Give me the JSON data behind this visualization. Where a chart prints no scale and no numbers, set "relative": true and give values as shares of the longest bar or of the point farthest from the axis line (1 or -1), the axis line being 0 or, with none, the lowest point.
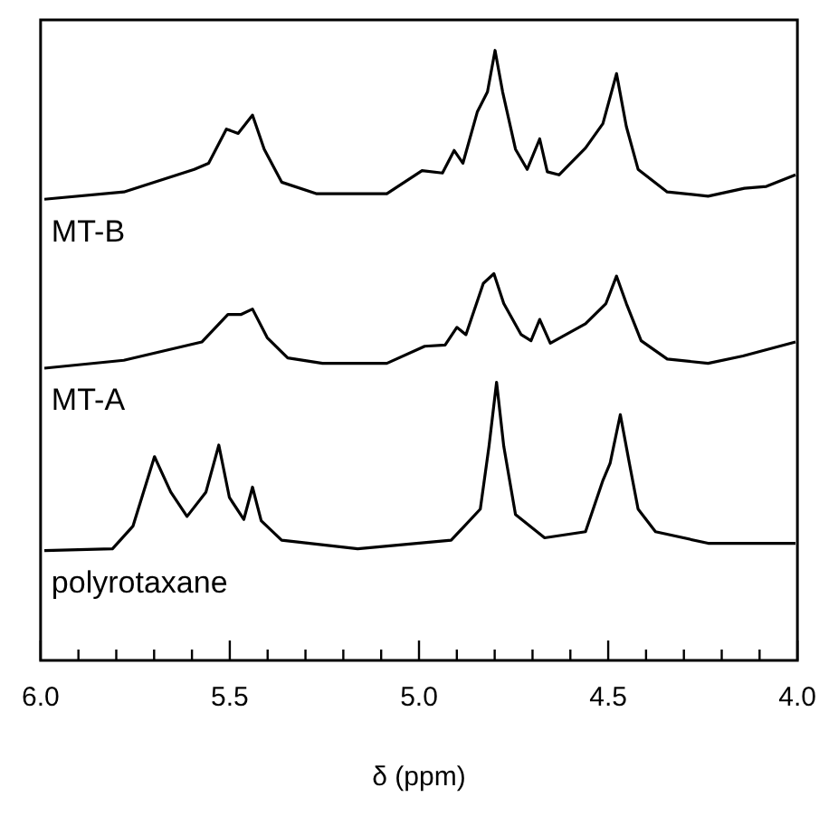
{
  "chart_data": {
    "type": "line",
    "xlabel": "δ (ppm)",
    "relative": true,
    "marker": "none",
    "grid": false,
    "legend": false,
    "xlim": [
      6.0,
      4.0
    ],
    "xticks": [
      {
        "value": 6,
        "label": "6.0"
      },
      {
        "value": 5.9,
        "label": null
      },
      {
        "value": 5.8,
        "label": null
      },
      {
        "value": 5.7,
        "label": null
      },
      {
        "value": 5.6,
        "label": null
      },
      {
        "value": 5.5,
        "label": "5.5"
      },
      {
        "value": 5.4,
        "label": null
      },
      {
        "value": 5.3,
        "label": null
      },
      {
        "value": 5.2,
        "label": null
      },
      {
        "value": 5.1,
        "label": null
      },
      {
        "value": 5,
        "label": "5.0"
      },
      {
        "value": 4.9,
        "label": null
      },
      {
        "value": 4.8,
        "label": null
      },
      {
        "value": 4.7,
        "label": null
      },
      {
        "value": 4.6,
        "label": null
      },
      {
        "value": 4.5,
        "label": "4.5"
      },
      {
        "value": 4.4,
        "label": null
      },
      {
        "value": 4.3,
        "label": null
      },
      {
        "value": 4.2,
        "label": null
      },
      {
        "value": 4.1,
        "label": null
      },
      {
        "value": 4,
        "label": "4.0"
      }
    ],
    "series": [
      {
        "name": "MT-B",
        "color": "#000000",
        "x": [
          5.99,
          5.78,
          5.594,
          5.556,
          5.509,
          5.478,
          5.44,
          5.409,
          5.363,
          5.27,
          5.085,
          4.992,
          4.938,
          4.907,
          4.884,
          4.846,
          4.819,
          4.799,
          4.779,
          4.745,
          4.714,
          4.681,
          4.661,
          4.63,
          4.56,
          4.514,
          4.478,
          4.452,
          4.421,
          4.344,
          4.236,
          4.14,
          4.082,
          4.005
        ],
        "values": [
          0.756,
          0.768,
          0.805,
          0.815,
          0.871,
          0.864,
          0.894,
          0.838,
          0.784,
          0.765,
          0.765,
          0.803,
          0.799,
          0.836,
          0.815,
          0.899,
          0.932,
          1,
          0.932,
          0.838,
          0.805,
          0.855,
          0.801,
          0.796,
          0.84,
          0.88,
          0.962,
          0.875,
          0.805,
          0.768,
          0.761,
          0.774,
          0.777,
          0.796
        ]
      },
      {
        "name": "MT-A",
        "color": "#000000",
        "x": [
          5.99,
          5.78,
          5.574,
          5.505,
          5.471,
          5.44,
          5.401,
          5.347,
          5.255,
          5.085,
          4.985,
          4.931,
          4.9,
          4.876,
          4.83,
          4.802,
          4.776,
          4.73,
          4.704,
          4.681,
          4.653,
          4.56,
          4.506,
          4.478,
          4.452,
          4.413,
          4.344,
          4.236,
          4.144,
          4.005
        ],
        "values": [
          0.479,
          0.492,
          0.522,
          0.567,
          0.567,
          0.576,
          0.529,
          0.496,
          0.487,
          0.487,
          0.515,
          0.517,
          0.546,
          0.534,
          0.618,
          0.634,
          0.585,
          0.534,
          0.524,
          0.559,
          0.52,
          0.552,
          0.585,
          0.63,
          0.585,
          0.524,
          0.494,
          0.487,
          0.499,
          0.522
        ]
      },
      {
        "name": "polyrotaxane",
        "color": "#000000",
        "x": [
          5.99,
          5.81,
          5.756,
          5.699,
          5.656,
          5.613,
          5.563,
          5.529,
          5.501,
          5.463,
          5.44,
          5.417,
          5.363,
          5.162,
          4.915,
          4.838,
          4.815,
          4.795,
          4.776,
          4.745,
          4.668,
          4.56,
          4.514,
          4.495,
          4.468,
          4.444,
          4.421,
          4.375,
          4.236,
          4.005
        ],
        "values": [
          0.18,
          0.183,
          0.22,
          0.334,
          0.276,
          0.236,
          0.276,
          0.353,
          0.267,
          0.231,
          0.284,
          0.229,
          0.197,
          0.183,
          0.197,
          0.248,
          0.351,
          0.456,
          0.351,
          0.239,
          0.201,
          0.211,
          0.295,
          0.323,
          0.403,
          0.323,
          0.248,
          0.211,
          0.192,
          0.192
        ]
      }
    ]
  }
}
